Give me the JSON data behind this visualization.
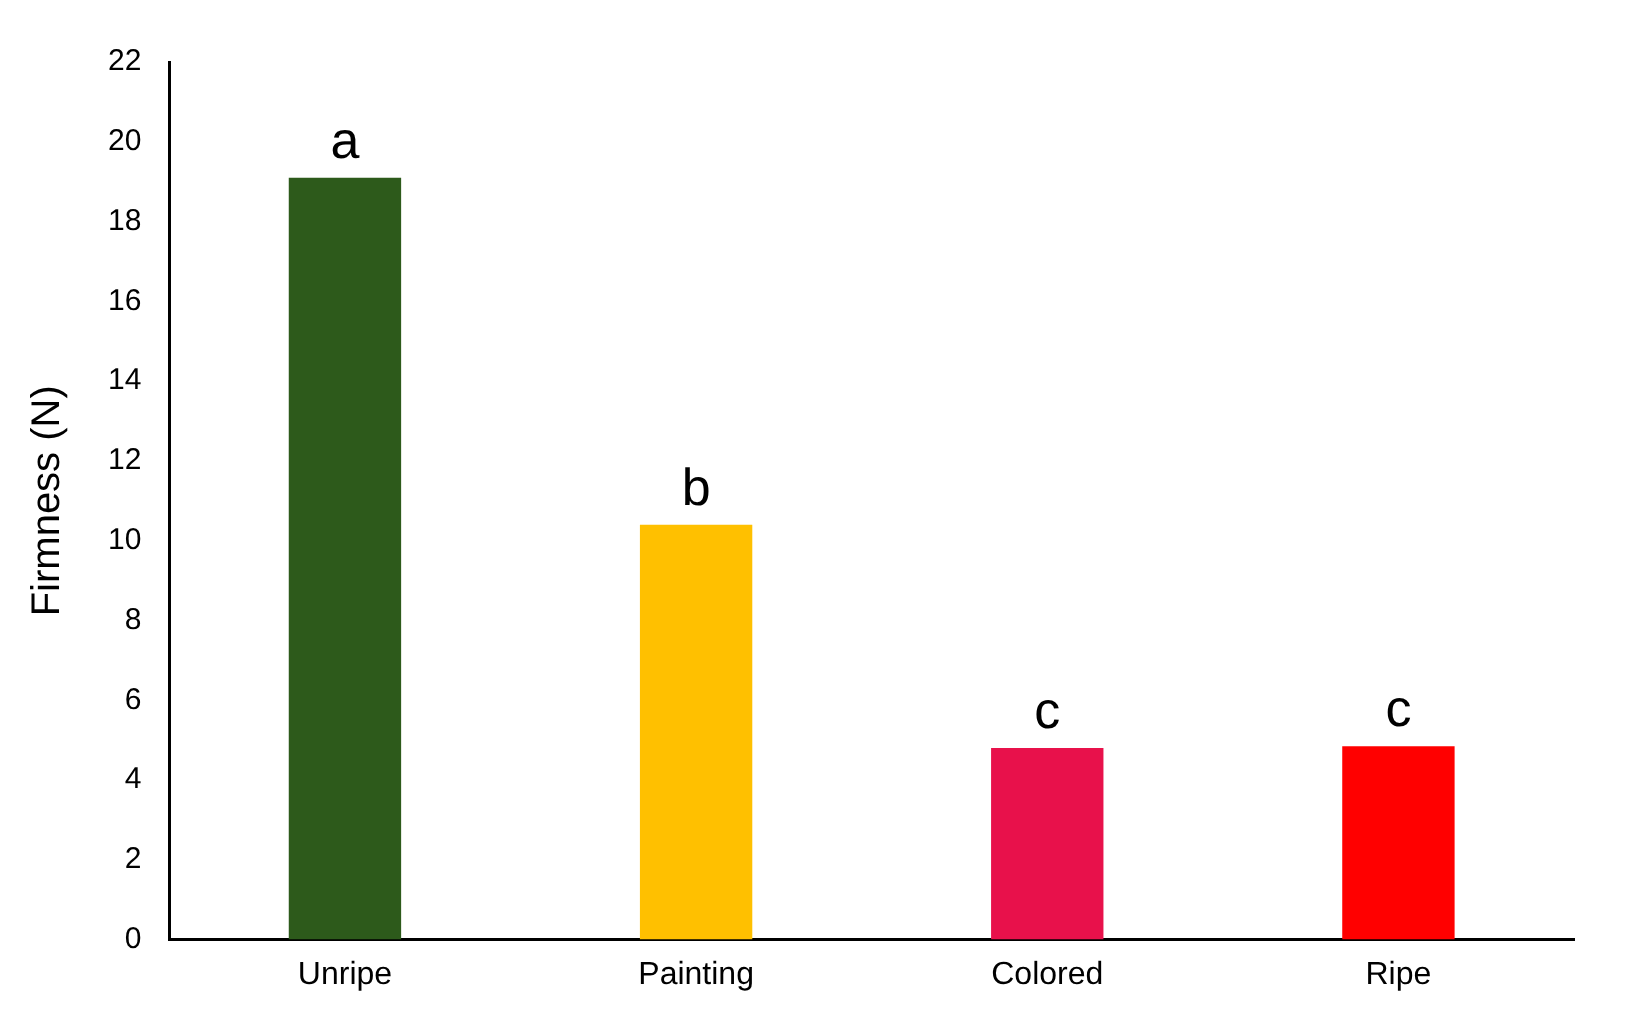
{
  "chart_data": {
    "type": "bar",
    "ylabel": "Firmness (N)",
    "categories": [
      "Unripe",
      "Painting",
      "Colored",
      "Ripe"
    ],
    "values": [
      19.1,
      10.4,
      4.8,
      4.85
    ],
    "colors": [
      "#2d5a1b",
      "#ffc000",
      "#e8114b",
      "#ff0000"
    ],
    "ylim": [
      0,
      22
    ],
    "yticks": [
      0,
      2,
      4,
      6,
      8,
      10,
      12,
      14,
      16,
      18,
      20,
      22
    ],
    "grid": false,
    "legend": false,
    "annotations": [
      {
        "text": "a",
        "x": "Unripe",
        "y": 19.1
      },
      {
        "text": "b",
        "x": "Painting",
        "y": 10.4
      },
      {
        "text": "c",
        "x": "Colored",
        "y": 4.8
      },
      {
        "text": "c",
        "x": "Ripe",
        "y": 4.85
      }
    ]
  }
}
